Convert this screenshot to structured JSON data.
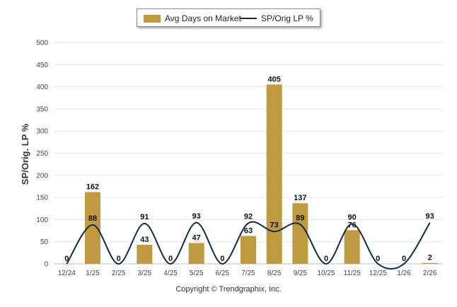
{
  "chart_data": {
    "type": "bar+line",
    "categories": [
      "12/24",
      "1/25",
      "2/25",
      "3/25",
      "4/25",
      "5/25",
      "6/25",
      "7/25",
      "8/25",
      "9/25",
      "10/25",
      "11/25",
      "12/25",
      "1/26",
      "2/26"
    ],
    "series": [
      {
        "name": "Avg Days on Market",
        "type": "bar",
        "color": "#c09a3e",
        "values": [
          0,
          162,
          0,
          43,
          0,
          47,
          0,
          63,
          405,
          137,
          0,
          76,
          0,
          0,
          2
        ]
      },
      {
        "name": "SP/Orig LP %",
        "type": "line",
        "color": "#0d2b4f",
        "values": [
          0,
          88,
          0,
          91,
          0,
          93,
          0,
          92,
          73,
          89,
          0,
          90,
          0,
          0,
          93
        ]
      }
    ],
    "ylabel": "SP/Orig. LP %",
    "xlabel": "",
    "ylim": [
      0,
      500
    ],
    "yticks": [
      0,
      50,
      100,
      150,
      200,
      250,
      300,
      350,
      400,
      450,
      500
    ],
    "grid": true,
    "legend": "top-center"
  },
  "legend": {
    "bar_label": "Avg Days on Market",
    "line_label": "SP/Orig LP %"
  },
  "footer": {
    "copyright": "Copyright © Trendgraphix, Inc."
  }
}
